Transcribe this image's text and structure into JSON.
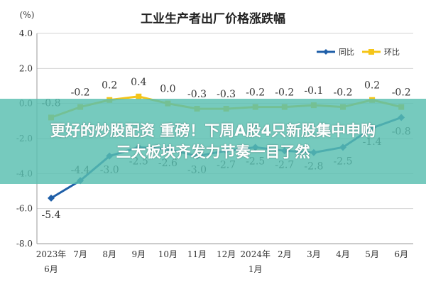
{
  "chart_data": {
    "type": "line",
    "title": "工业生产者出厂价格涨跌幅",
    "y_unit_label": "(%)",
    "categories": [
      "2023年6月",
      "7月",
      "8月",
      "9月",
      "10月",
      "11月",
      "12月",
      "2024年1月",
      "2月",
      "3月",
      "4月",
      "5月",
      "6月"
    ],
    "x_tick_lines": [
      [
        "2023年",
        "6月"
      ],
      [
        "7月"
      ],
      [
        "8月"
      ],
      [
        "9月"
      ],
      [
        "10月"
      ],
      [
        "11月"
      ],
      [
        "12月"
      ],
      [
        "2024年",
        "1月"
      ],
      [
        "2月"
      ],
      [
        "3月"
      ],
      [
        "4月"
      ],
      [
        "5月"
      ],
      [
        "6月"
      ]
    ],
    "series": [
      {
        "name": "同比",
        "color": "#1f5fa8",
        "values": [
          -5.4,
          -4.4,
          -3.0,
          -2.5,
          -2.6,
          -3.0,
          -2.7,
          -2.5,
          -2.7,
          -2.8,
          -2.5,
          -1.4,
          -0.8
        ],
        "labels": [
          "-5.4",
          "-4.4",
          "-3.0",
          "-2.5",
          "-2.6",
          "-3.0",
          "-2.7",
          "-2.5",
          "-2.7",
          "-2.8",
          "-2.5",
          "-1.4",
          "-0.8"
        ]
      },
      {
        "name": "环比",
        "color": "#f5c518",
        "values": [
          -0.8,
          -0.2,
          0.2,
          0.4,
          0.0,
          -0.3,
          -0.3,
          -0.2,
          -0.2,
          -0.1,
          -0.2,
          0.2,
          -0.2
        ],
        "labels": [
          "-0.8",
          "-0.2",
          "0.2",
          "0.4",
          "0.0",
          "-0.3",
          "-0.3",
          "-0.2",
          "-0.2",
          "-0.1",
          "-0.2",
          "0.2",
          "-0.2"
        ]
      }
    ],
    "y_ticks": [
      4.0,
      2.0,
      0.0,
      -2.0,
      -4.0,
      -6.0,
      -8.0
    ],
    "y_tick_labels": [
      "4.0",
      "2.0",
      "0.0",
      "-2.0",
      "-4.0",
      "-6.0",
      "-8.0"
    ],
    "ylim": [
      -8,
      4
    ],
    "grid": true,
    "legend_position": "top-right"
  },
  "banner": {
    "line1": "更好的炒股配资 重磅！下周A股4只新股集中申购",
    "line2": "三大板块齐发力节奏一目了然"
  }
}
